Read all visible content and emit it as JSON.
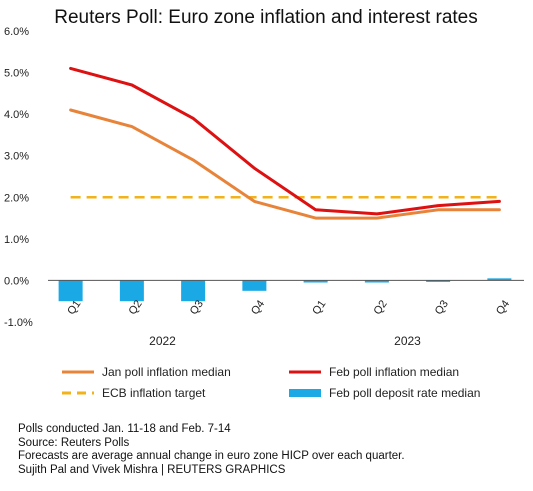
{
  "chart_data": {
    "type": "line",
    "title": "Reuters Poll: Euro zone inflation and interest rates",
    "categories": [
      "Q1",
      "Q2",
      "Q3",
      "Q4",
      "Q1",
      "Q2",
      "Q3",
      "Q4"
    ],
    "years": [
      {
        "label": "2022",
        "from": 0,
        "to": 3
      },
      {
        "label": "2023",
        "from": 4,
        "to": 7
      }
    ],
    "yticks": [
      "6.0%",
      "5.0%",
      "4.0%",
      "3.0%",
      "2.0%",
      "1.0%",
      "0.0%",
      "-1.0%"
    ],
    "ylim": [
      -1,
      6
    ],
    "series": [
      {
        "name": "Jan poll inflation median",
        "kind": "line",
        "color": "#e8843a",
        "values": [
          4.1,
          3.7,
          2.9,
          1.9,
          1.5,
          1.5,
          1.7,
          1.7
        ]
      },
      {
        "name": "Feb poll inflation median",
        "kind": "line",
        "color": "#dd1111",
        "values": [
          5.1,
          4.7,
          3.9,
          2.7,
          1.7,
          1.6,
          1.8,
          1.9
        ]
      },
      {
        "name": "ECB inflation target",
        "kind": "dashed",
        "color": "#f2b21b",
        "values": [
          2.0,
          2.0,
          2.0,
          2.0,
          2.0,
          2.0,
          2.0,
          2.0
        ]
      },
      {
        "name": "Feb poll deposit rate median",
        "kind": "bar",
        "color": "#1aa9e5",
        "values": [
          -0.5,
          -0.5,
          -0.5,
          -0.25,
          -0.05,
          -0.05,
          -0.02,
          0.05
        ]
      }
    ],
    "legend": "bottom",
    "grid": false
  },
  "footnotes": [
    "Polls conducted Jan. 11-18 and Feb. 7-14",
    "Source: Reuters Polls",
    "Forecasts are average annual change in euro zone HICP over each quarter.",
    "Sujith Pal and Vivek Mishra | REUTERS GRAPHICS"
  ]
}
